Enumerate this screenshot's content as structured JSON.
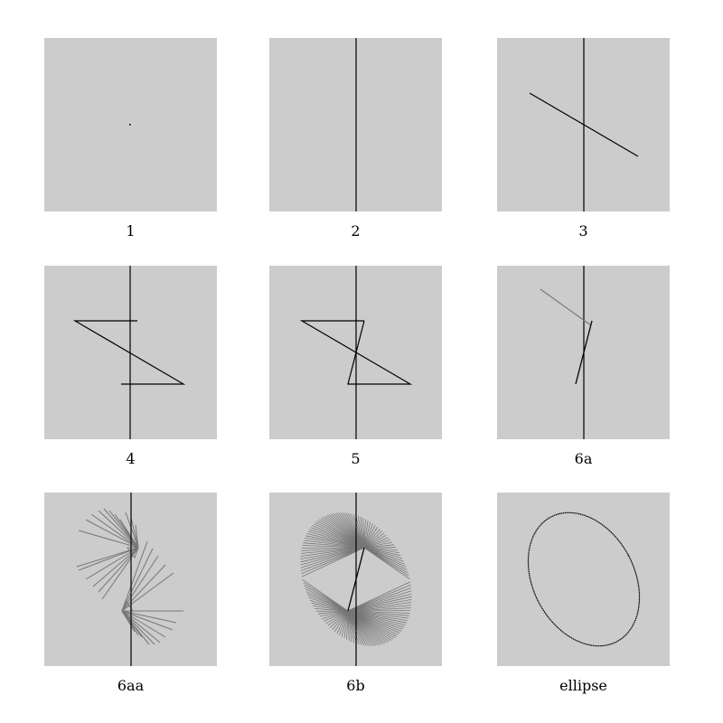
{
  "panels": [
    {
      "id": "1",
      "label": "1"
    },
    {
      "id": "2",
      "label": "2"
    },
    {
      "id": "3",
      "label": "3"
    },
    {
      "id": "4",
      "label": "4"
    },
    {
      "id": "5",
      "label": "5"
    },
    {
      "id": "6a",
      "label": "6a"
    },
    {
      "id": "6aa",
      "label": "6aa"
    },
    {
      "id": "6b",
      "label": "6b"
    },
    {
      "id": "ellipse",
      "label": "ellipse"
    }
  ],
  "colors": {
    "panel_background": "#cccccc",
    "stroke_primary": "#000000",
    "stroke_secondary": "#777777"
  }
}
